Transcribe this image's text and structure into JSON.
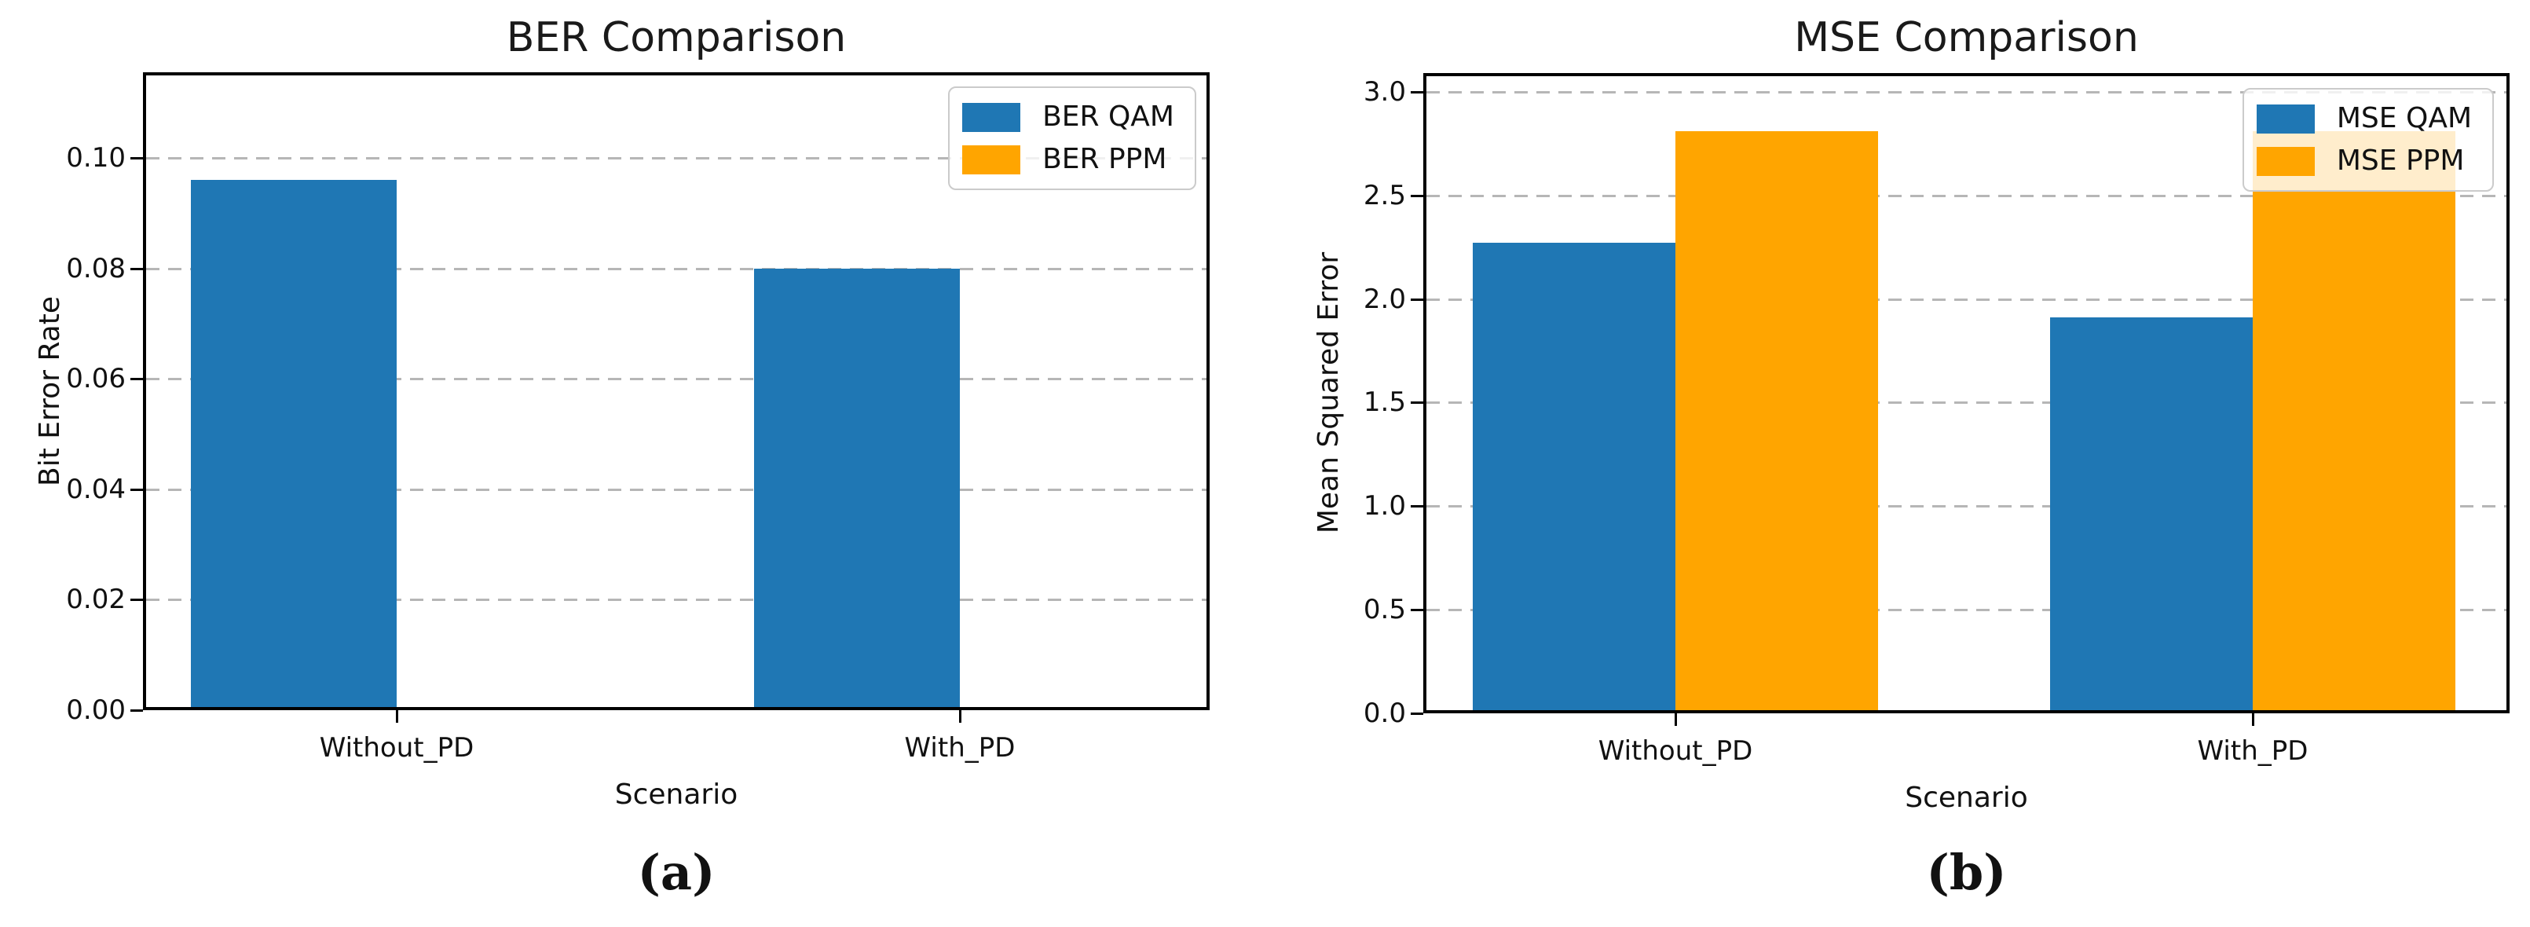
{
  "figure": {
    "background": "#ffffff",
    "accent_blue": "#1f77b4",
    "accent_orange": "#ffa500",
    "captions": [
      "(a)",
      "(b)"
    ]
  },
  "chart_data": [
    {
      "type": "bar",
      "title": "BER Comparison",
      "xlabel": "Scenario",
      "ylabel": "Bit Error Rate",
      "categories": [
        "Without_PD",
        "With_PD"
      ],
      "series": [
        {
          "name": "BER QAM",
          "color": "#1f77b4",
          "values": [
            0.096,
            0.08
          ]
        },
        {
          "name": "BER PPM",
          "color": "#ffa500",
          "values": [
            0.0,
            0.0
          ]
        }
      ],
      "ylim": [
        0,
        0.1155
      ],
      "yticks": [
        {
          "v": 0.0,
          "label": "0.00"
        },
        {
          "v": 0.02,
          "label": "0.02"
        },
        {
          "v": 0.04,
          "label": "0.04"
        },
        {
          "v": 0.06,
          "label": "0.06"
        },
        {
          "v": 0.08,
          "label": "0.08"
        },
        {
          "v": 0.1,
          "label": "0.10"
        }
      ],
      "grid": "dashed horizontal",
      "legend_position": "upper right",
      "caption": "(a)"
    },
    {
      "type": "bar",
      "title": "MSE Comparison",
      "xlabel": "Scenario",
      "ylabel": "Mean Squared Error",
      "categories": [
        "Without_PD",
        "With_PD"
      ],
      "series": [
        {
          "name": "MSE QAM",
          "color": "#1f77b4",
          "values": [
            2.27,
            1.91
          ]
        },
        {
          "name": "MSE PPM",
          "color": "#ffa500",
          "values": [
            2.81,
            2.81
          ]
        }
      ],
      "ylim": [
        0,
        3.091
      ],
      "yticks": [
        {
          "v": 0.0,
          "label": "0.0"
        },
        {
          "v": 0.5,
          "label": "0.5"
        },
        {
          "v": 1.0,
          "label": "1.0"
        },
        {
          "v": 1.5,
          "label": "1.5"
        },
        {
          "v": 2.0,
          "label": "2.0"
        },
        {
          "v": 2.5,
          "label": "2.5"
        },
        {
          "v": 3.0,
          "label": "3.0"
        }
      ],
      "grid": "dashed horizontal",
      "legend_position": "upper right",
      "caption": "(b)"
    }
  ]
}
